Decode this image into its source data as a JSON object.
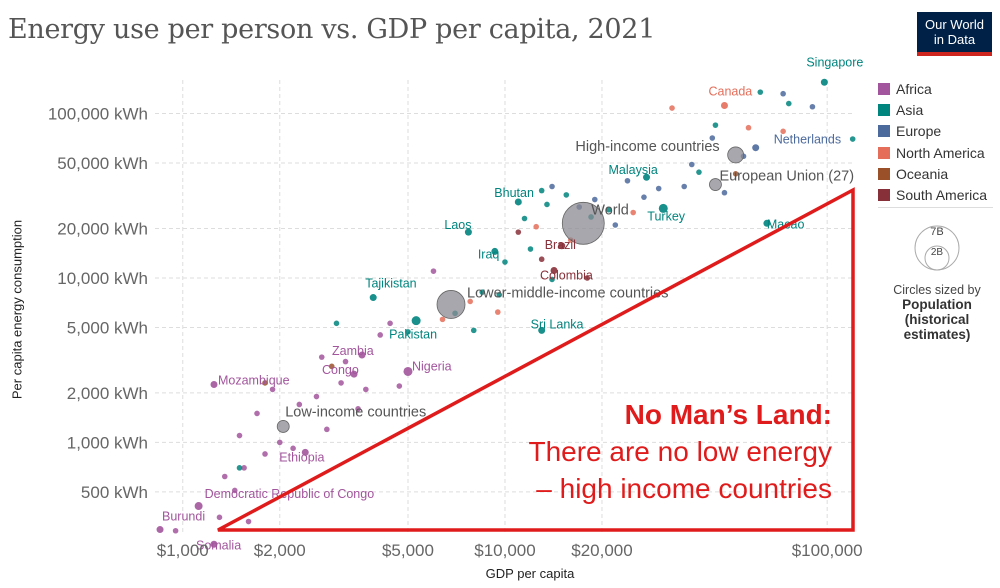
{
  "header": {
    "title": "Energy use per person vs. GDP per capita, 2021",
    "logo_line1": "Our World",
    "logo_line2": "in Data"
  },
  "chart_data": {
    "type": "scatter",
    "title": "Energy use per person vs. GDP per capita, 2021",
    "xlabel": "GDP per capita",
    "ylabel": "Per capita energy consumption",
    "x_scale": "log",
    "y_scale": "log",
    "xlim": [
      820,
      122000
    ],
    "ylim": [
      285,
      160000
    ],
    "x_ticks": [
      {
        "value": 1000,
        "label": "$1,000"
      },
      {
        "value": 2000,
        "label": "$2,000"
      },
      {
        "value": 5000,
        "label": "$5,000"
      },
      {
        "value": 10000,
        "label": "$10,000"
      },
      {
        "value": 20000,
        "label": "$20,000"
      },
      {
        "value": 100000,
        "label": "$100,000"
      }
    ],
    "y_ticks": [
      {
        "value": 500,
        "label": "500 kWh"
      },
      {
        "value": 1000,
        "label": "1,000 kWh"
      },
      {
        "value": 2000,
        "label": "2,000 kWh"
      },
      {
        "value": 5000,
        "label": "5,000 kWh"
      },
      {
        "value": 10000,
        "label": "10,000 kWh"
      },
      {
        "value": 20000,
        "label": "20,000 kWh"
      },
      {
        "value": 50000,
        "label": "50,000 kWh"
      },
      {
        "value": 100000,
        "label": "100,000 kWh"
      }
    ],
    "grid": true,
    "legend_placement": "right",
    "regions": [
      {
        "name": "Africa",
        "color": "#a2559c"
      },
      {
        "name": "Asia",
        "color": "#00847e"
      },
      {
        "name": "Europe",
        "color": "#4c6a9c"
      },
      {
        "name": "North America",
        "color": "#e56e5a"
      },
      {
        "name": "Oceania",
        "color": "#9a5129"
      },
      {
        "name": "South America",
        "color": "#883039"
      }
    ],
    "labeled_points": [
      {
        "label": "Singapore",
        "region": "Asia",
        "x": 98000,
        "y": 155000,
        "r": 3.5
      },
      {
        "label": "Canada",
        "region": "North America",
        "x": 48000,
        "y": 112000,
        "r": 3.5
      },
      {
        "label": "Netherlands",
        "region": "Europe",
        "x": 60000,
        "y": 62000,
        "r": 3.5
      },
      {
        "label": "Malaysia",
        "region": "Asia",
        "x": 27500,
        "y": 41000,
        "r": 3.5
      },
      {
        "label": "Turkey",
        "region": "Asia",
        "x": 31000,
        "y": 26500,
        "r": 4.5
      },
      {
        "label": "Macao",
        "region": "Asia",
        "x": 65000,
        "y": 21500,
        "r": 3.5
      },
      {
        "label": "Bhutan",
        "region": "Asia",
        "x": 11000,
        "y": 29000,
        "r": 3.5
      },
      {
        "label": "Laos",
        "region": "Asia",
        "x": 7700,
        "y": 19000,
        "r": 3.5
      },
      {
        "label": "Iraq",
        "region": "Asia",
        "x": 9300,
        "y": 14500,
        "r": 3.5
      },
      {
        "label": "Brazil",
        "region": "South America",
        "x": 15000,
        "y": 15700,
        "r": 3.5
      },
      {
        "label": "Colombia",
        "region": "South America",
        "x": 14200,
        "y": 11100,
        "r": 3.5
      },
      {
        "label": "Tajikistan",
        "region": "Asia",
        "x": 3900,
        "y": 7600,
        "r": 3.5
      },
      {
        "label": "Pakistan",
        "region": "Asia",
        "x": 5300,
        "y": 5500,
        "r": 4.5
      },
      {
        "label": "Sri Lanka",
        "region": "Asia",
        "x": 13000,
        "y": 4800,
        "r": 3.5
      },
      {
        "label": "Zambia",
        "region": "Africa",
        "x": 3600,
        "y": 3400,
        "r": 3.5
      },
      {
        "label": "Congo",
        "region": "Africa",
        "x": 3400,
        "y": 2600,
        "r": 3.5
      },
      {
        "label": "Nigeria",
        "region": "Africa",
        "x": 5000,
        "y": 2700,
        "r": 4.5
      },
      {
        "label": "Mozambique",
        "region": "Africa",
        "x": 1250,
        "y": 2250,
        "r": 3.5
      },
      {
        "label": "Ethiopia",
        "region": "Africa",
        "x": 2400,
        "y": 870,
        "r": 3.5
      },
      {
        "label": "Democratic Republic of Congo",
        "region": "Africa",
        "x": 1120,
        "y": 410,
        "r": 4
      },
      {
        "label": "Burundi",
        "region": "Africa",
        "x": 850,
        "y": 295,
        "r": 3.5
      },
      {
        "label": "Somalia",
        "region": "Africa",
        "x": 1250,
        "y": 240,
        "r": 3.5
      }
    ],
    "aggregate_points": [
      {
        "label": "World",
        "x": 17500,
        "y": 21500,
        "r": 21
      },
      {
        "label": "High-income countries",
        "x": 52000,
        "y": 56000,
        "r": 8
      },
      {
        "label": "European Union (27)",
        "x": 45000,
        "y": 37000,
        "r": 6
      },
      {
        "label": "Lower-middle-income countries",
        "x": 6800,
        "y": 6900,
        "r": 14
      },
      {
        "label": "Low-income countries",
        "x": 2050,
        "y": 1250,
        "r": 6
      }
    ],
    "unlabeled_points": [
      {
        "region": "Asia",
        "x": 62000,
        "y": 135000
      },
      {
        "region": "Europe",
        "x": 73000,
        "y": 132000
      },
      {
        "region": "Asia",
        "x": 76000,
        "y": 115000
      },
      {
        "region": "Europe",
        "x": 90000,
        "y": 110000
      },
      {
        "region": "North America",
        "x": 57000,
        "y": 82000
      },
      {
        "region": "Asia",
        "x": 45000,
        "y": 85000
      },
      {
        "region": "Asia",
        "x": 120000,
        "y": 70000
      },
      {
        "region": "North America",
        "x": 33000,
        "y": 108000
      },
      {
        "region": "North America",
        "x": 73000,
        "y": 78000
      },
      {
        "region": "Europe",
        "x": 44000,
        "y": 71000
      },
      {
        "region": "Europe",
        "x": 55000,
        "y": 55000
      },
      {
        "region": "Europe",
        "x": 38000,
        "y": 49000
      },
      {
        "region": "Asia",
        "x": 40000,
        "y": 44000
      },
      {
        "region": "Europe",
        "x": 36000,
        "y": 36000
      },
      {
        "region": "Europe",
        "x": 48000,
        "y": 33000
      },
      {
        "region": "Oceania",
        "x": 52000,
        "y": 43000
      },
      {
        "region": "Europe",
        "x": 30000,
        "y": 35000
      },
      {
        "region": "Europe",
        "x": 27000,
        "y": 31000
      },
      {
        "region": "Europe",
        "x": 24000,
        "y": 39000
      },
      {
        "region": "North America",
        "x": 25000,
        "y": 25000
      },
      {
        "region": "Asia",
        "x": 21000,
        "y": 26000
      },
      {
        "region": "Europe",
        "x": 19000,
        "y": 30000
      },
      {
        "region": "Europe",
        "x": 22000,
        "y": 21000
      },
      {
        "region": "Asia",
        "x": 18500,
        "y": 23500
      },
      {
        "region": "Europe",
        "x": 17000,
        "y": 27000
      },
      {
        "region": "Asia",
        "x": 13500,
        "y": 28000
      },
      {
        "region": "Asia",
        "x": 13000,
        "y": 34000
      },
      {
        "region": "Asia",
        "x": 15500,
        "y": 32000
      },
      {
        "region": "Europe",
        "x": 14000,
        "y": 36000
      },
      {
        "region": "North America",
        "x": 12500,
        "y": 20500
      },
      {
        "region": "Asia",
        "x": 11500,
        "y": 23000
      },
      {
        "region": "South America",
        "x": 11000,
        "y": 19000
      },
      {
        "region": "North America",
        "x": 16000,
        "y": 17000
      },
      {
        "region": "Asia",
        "x": 12000,
        "y": 15000
      },
      {
        "region": "Asia",
        "x": 10000,
        "y": 12500
      },
      {
        "region": "South America",
        "x": 13000,
        "y": 13000
      },
      {
        "region": "Asia",
        "x": 14000,
        "y": 9800
      },
      {
        "region": "South America",
        "x": 18000,
        "y": 10000
      },
      {
        "region": "Asia",
        "x": 9600,
        "y": 7900
      },
      {
        "region": "Asia",
        "x": 8500,
        "y": 8200
      },
      {
        "region": "North America",
        "x": 7800,
        "y": 7200
      },
      {
        "region": "Asia",
        "x": 7000,
        "y": 6100
      },
      {
        "region": "North America",
        "x": 6400,
        "y": 5600
      },
      {
        "region": "Asia",
        "x": 8000,
        "y": 4800
      },
      {
        "region": "North America",
        "x": 9500,
        "y": 6200
      },
      {
        "region": "Africa",
        "x": 6000,
        "y": 11000
      },
      {
        "region": "Asia",
        "x": 5000,
        "y": 4700
      },
      {
        "region": "Africa",
        "x": 4400,
        "y": 5300
      },
      {
        "region": "Africa",
        "x": 4100,
        "y": 4500
      },
      {
        "region": "Asia",
        "x": 3000,
        "y": 5300
      },
      {
        "region": "Africa",
        "x": 3200,
        "y": 3100
      },
      {
        "region": "Oceania",
        "x": 2900,
        "y": 2900
      },
      {
        "region": "Africa",
        "x": 3700,
        "y": 2100
      },
      {
        "region": "Africa",
        "x": 3100,
        "y": 2300
      },
      {
        "region": "Africa",
        "x": 2600,
        "y": 1900
      },
      {
        "region": "Africa",
        "x": 2300,
        "y": 1700
      },
      {
        "region": "Africa",
        "x": 1900,
        "y": 2100
      },
      {
        "region": "Africa",
        "x": 1700,
        "y": 1500
      },
      {
        "region": "Africa",
        "x": 1500,
        "y": 1100
      },
      {
        "region": "Africa",
        "x": 2000,
        "y": 1000
      },
      {
        "region": "Africa",
        "x": 2200,
        "y": 920
      },
      {
        "region": "Africa",
        "x": 1800,
        "y": 850
      },
      {
        "region": "Africa",
        "x": 1550,
        "y": 700
      },
      {
        "region": "Africa",
        "x": 1350,
        "y": 620
      },
      {
        "region": "Africa",
        "x": 1450,
        "y": 510
      },
      {
        "region": "Africa",
        "x": 1300,
        "y": 350
      },
      {
        "region": "Africa",
        "x": 1600,
        "y": 330
      },
      {
        "region": "Africa",
        "x": 950,
        "y": 290
      },
      {
        "region": "Asia",
        "x": 1500,
        "y": 700
      },
      {
        "region": "Oceania",
        "x": 1800,
        "y": 2300
      },
      {
        "region": "Africa",
        "x": 2700,
        "y": 3300
      },
      {
        "region": "Africa",
        "x": 4700,
        "y": 2200
      },
      {
        "region": "Africa",
        "x": 3500,
        "y": 1600
      },
      {
        "region": "Africa",
        "x": 2800,
        "y": 1200
      }
    ]
  },
  "annotation": {
    "heading": "No Man’s Land:",
    "line1": "There are no low energy",
    "line2": "– high income countries"
  },
  "legend": {
    "items": [
      {
        "label": "Africa",
        "color": "#a2559c"
      },
      {
        "label": "Asia",
        "color": "#00847e"
      },
      {
        "label": "Europe",
        "color": "#4c6a9c"
      },
      {
        "label": "North America",
        "color": "#e56e5a"
      },
      {
        "label": "Oceania",
        "color": "#9a5129"
      },
      {
        "label": "South America",
        "color": "#883039"
      }
    ],
    "size_big": "7B",
    "size_small": "2B",
    "size_note": "Circles sized by",
    "size_var_1": "Population",
    "size_var_2": "(historical",
    "size_var_3": "estimates)"
  }
}
